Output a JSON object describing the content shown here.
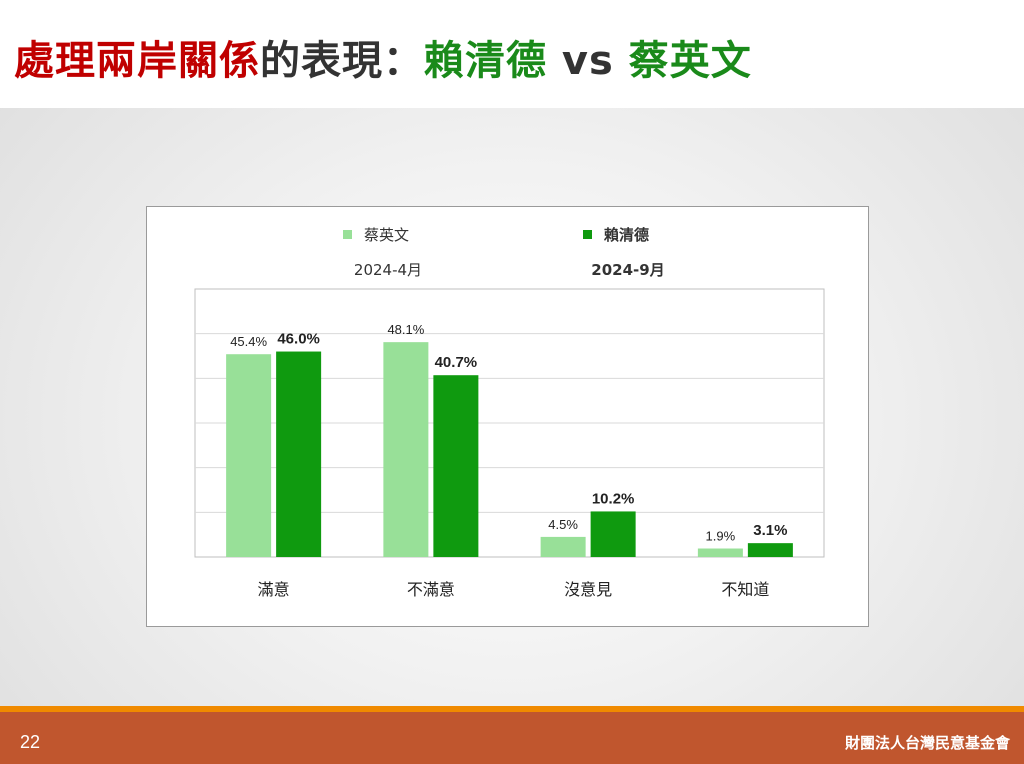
{
  "title": {
    "part_red": "處理兩岸關係",
    "part_dark": "的表現：",
    "part_green_1": "賴清德",
    "part_vs": " vs ",
    "part_green_2": "蔡英文"
  },
  "footer": {
    "page_number": "22",
    "organization": "財團法人台灣民意基金會"
  },
  "colors": {
    "light_green": "#98e098",
    "dark_green": "#0f9a0f",
    "title_red": "#c00000",
    "title_green": "#1a8a1a",
    "footer": "#c0562e",
    "footer_accent": "#f08a00"
  },
  "chart_data": {
    "type": "bar",
    "categories": [
      "滿意",
      "不滿意",
      "沒意見",
      "不知道"
    ],
    "series": [
      {
        "name": "蔡英文",
        "period": "2024-4月",
        "values": [
          45.4,
          48.1,
          4.5,
          1.9
        ],
        "labels": [
          "45.4%",
          "48.1%",
          "4.5%",
          "1.9%"
        ],
        "color": "#98e098",
        "bold_labels": false
      },
      {
        "name": "賴清德",
        "period": "2024-9月",
        "values": [
          46.0,
          40.7,
          10.2,
          3.1
        ],
        "labels": [
          "46.0%",
          "40.7%",
          "10.2%",
          "3.1%"
        ],
        "color": "#0f9a0f",
        "bold_labels": true
      }
    ],
    "ylim": [
      0,
      60
    ],
    "grid": true,
    "legend": "top"
  }
}
